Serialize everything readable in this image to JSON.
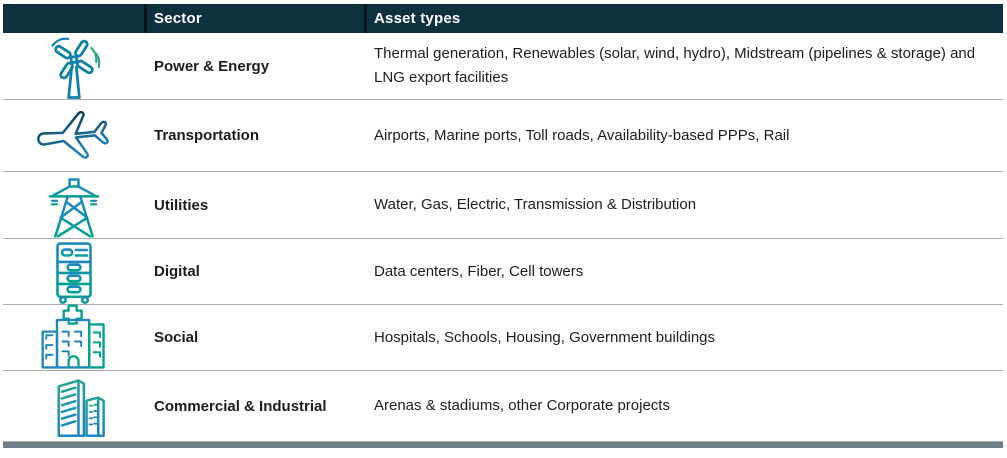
{
  "table": {
    "columns": [
      {
        "label": ""
      },
      {
        "label": "Sector"
      },
      {
        "label": "Asset types"
      }
    ],
    "rows": [
      {
        "icon": "wind-turbine-icon",
        "sector": "Power & Energy",
        "assets": "Thermal generation, Renewables (solar, wind, hydro), Midstream (pipelines & storage) and LNG export facilities"
      },
      {
        "icon": "airplane-icon",
        "sector": "Transportation",
        "assets": "Airports, Marine ports, Toll roads, Availability-based PPPs, Rail"
      },
      {
        "icon": "transmission-tower-icon",
        "sector": "Utilities",
        "assets": "Water, Gas, Electric, Transmission & Distribution"
      },
      {
        "icon": "server-rack-icon",
        "sector": "Digital",
        "assets": "Data centers, Fiber, Cell towers"
      },
      {
        "icon": "hospital-building-icon",
        "sector": "Social",
        "assets": "Hospitals, Schools, Housing, Government buildings"
      },
      {
        "icon": "office-buildings-icon",
        "sector": "Commercial & Industrial",
        "assets": "Arenas & stadiums, other Corporate projects"
      }
    ],
    "colors": {
      "header_bg": "#0e3140",
      "header_divider": "#0a161d",
      "header_text": "#ffffff",
      "row_divider": "#a9abae",
      "bottom_bar": "#6f7e87",
      "body_text": "#1d1d1b",
      "icon_blue": "#1f86c2",
      "icon_teal": "#00a18e",
      "icon_green": "#2aa88d",
      "icon_navy": "#14384a",
      "icon_teal_blue": "#0f81a8"
    }
  }
}
